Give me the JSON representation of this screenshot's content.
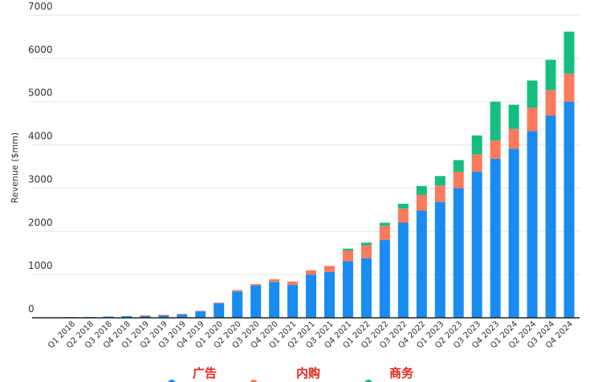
{
  "chart_data": {
    "type": "bar",
    "stacked": true,
    "ylabel": "Revenue ($mm)",
    "xlabel": "",
    "ylim": [
      0,
      7000
    ],
    "yticks": [
      0,
      1000,
      2000,
      3000,
      4000,
      5000,
      6000,
      7000
    ],
    "grid": true,
    "legend": "bottom",
    "categories": [
      "Q1 2018",
      "Q2 2018",
      "Q3 2018",
      "Q4 2018",
      "Q1 2019",
      "Q2 2019",
      "Q3 2019",
      "Q4 2019",
      "Q1 2020",
      "Q2 2020",
      "Q3 2020",
      "Q4 2020",
      "Q1 2021",
      "Q2 2021",
      "Q3 2021",
      "Q4 2021",
      "Q1 2022",
      "Q2 2022",
      "Q3 2022",
      "Q4 2022",
      "Q1 2023",
      "Q2 2023",
      "Q3 2023",
      "Q4 2023",
      "Q1 2024",
      "Q2 2024",
      "Q3 2024",
      "Q4 2024"
    ],
    "series": [
      {
        "name": "广告",
        "color": "#1a8cf0",
        "values": [
          15,
          20,
          30,
          40,
          50,
          60,
          80,
          150,
          340,
          610,
          750,
          830,
          760,
          1000,
          1060,
          1310,
          1380,
          1800,
          2200,
          2480,
          2680,
          3000,
          3380,
          3680,
          3910,
          4320,
          4680,
          5000
        ]
      },
      {
        "name": "内购",
        "color": "#fa7a5e",
        "values": [
          0,
          0,
          0,
          0,
          5,
          8,
          10,
          10,
          10,
          30,
          30,
          60,
          80,
          100,
          140,
          250,
          300,
          330,
          330,
          370,
          380,
          380,
          400,
          420,
          460,
          540,
          590,
          650
        ]
      },
      {
        "name": "商务",
        "color": "#15bd7e",
        "values": [
          0,
          0,
          0,
          0,
          0,
          0,
          0,
          0,
          0,
          0,
          0,
          0,
          0,
          0,
          0,
          40,
          60,
          70,
          110,
          200,
          220,
          270,
          440,
          900,
          560,
          630,
          700,
          970
        ]
      }
    ]
  }
}
